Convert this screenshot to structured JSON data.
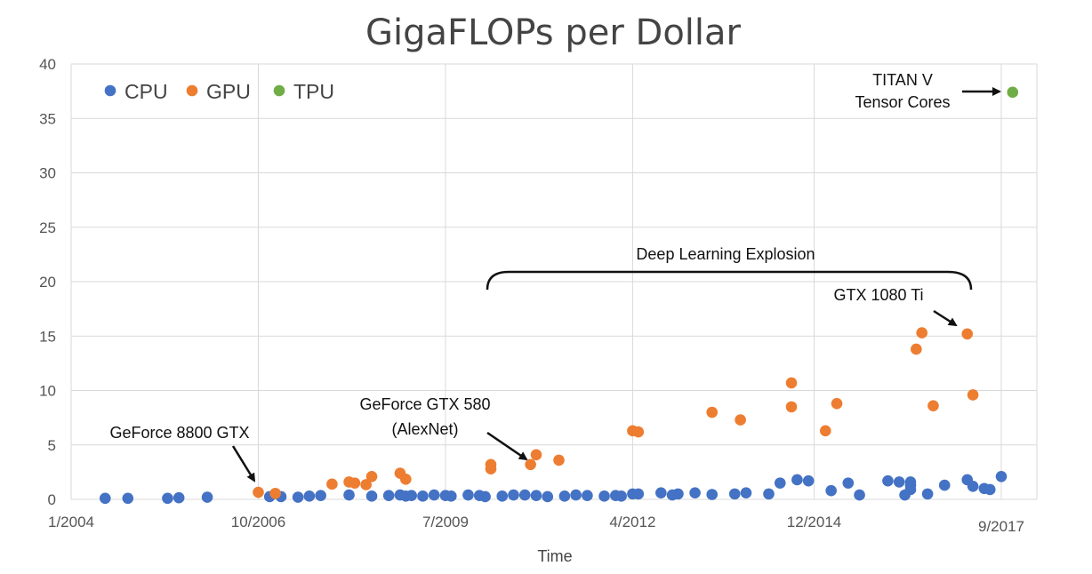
{
  "chart_data": {
    "type": "scatter",
    "title": "GigaFLOPs per Dollar",
    "xlabel": "Time",
    "ylabel": "",
    "ylim": [
      0,
      40
    ],
    "yticks": [
      0,
      5,
      10,
      15,
      20,
      25,
      30,
      35,
      40
    ],
    "xlim": [
      "2004-01",
      "2017-09"
    ],
    "xticks": [
      {
        "date": "2004-01",
        "label": "1/2004"
      },
      {
        "date": "2006-10",
        "label": "10/2006"
      },
      {
        "date": "2009-07",
        "label": "7/2009"
      },
      {
        "date": "2012-04",
        "label": "4/2012"
      },
      {
        "date": "2014-12",
        "label": "12/2014"
      },
      {
        "date": "2017-09",
        "label": "9/2017"
      }
    ],
    "grid": true,
    "legend_position": "top-left",
    "series": [
      {
        "name": "CPU",
        "color": "#4472c4",
        "points": [
          [
            "2004-07",
            0.1
          ],
          [
            "2004-11",
            0.1
          ],
          [
            "2005-06",
            0.1
          ],
          [
            "2005-08",
            0.15
          ],
          [
            "2006-01",
            0.2
          ],
          [
            "2006-12",
            0.25
          ],
          [
            "2007-02",
            0.25
          ],
          [
            "2007-05",
            0.2
          ],
          [
            "2007-07",
            0.3
          ],
          [
            "2007-09",
            0.35
          ],
          [
            "2008-02",
            0.4
          ],
          [
            "2008-06",
            0.3
          ],
          [
            "2008-09",
            0.35
          ],
          [
            "2008-11",
            0.4
          ],
          [
            "2008-12",
            0.3
          ],
          [
            "2009-01",
            0.35
          ],
          [
            "2009-03",
            0.3
          ],
          [
            "2009-05",
            0.4
          ],
          [
            "2009-07",
            0.35
          ],
          [
            "2009-08",
            0.3
          ],
          [
            "2009-11",
            0.4
          ],
          [
            "2010-01",
            0.35
          ],
          [
            "2010-02",
            0.25
          ],
          [
            "2010-05",
            0.3
          ],
          [
            "2010-07",
            0.4
          ],
          [
            "2010-09",
            0.4
          ],
          [
            "2010-11",
            0.35
          ],
          [
            "2011-01",
            0.25
          ],
          [
            "2011-04",
            0.3
          ],
          [
            "2011-06",
            0.4
          ],
          [
            "2011-08",
            0.35
          ],
          [
            "2011-11",
            0.3
          ],
          [
            "2012-01",
            0.35
          ],
          [
            "2012-02",
            0.3
          ],
          [
            "2012-04",
            0.5
          ],
          [
            "2012-05",
            0.5
          ],
          [
            "2012-09",
            0.6
          ],
          [
            "2012-11",
            0.4
          ],
          [
            "2012-12",
            0.5
          ],
          [
            "2013-03",
            0.6
          ],
          [
            "2013-06",
            0.45
          ],
          [
            "2013-10",
            0.5
          ],
          [
            "2013-12",
            0.6
          ],
          [
            "2014-04",
            0.5
          ],
          [
            "2014-06",
            1.5
          ],
          [
            "2014-09",
            1.8
          ],
          [
            "2014-11",
            1.7
          ],
          [
            "2015-03",
            0.8
          ],
          [
            "2015-06",
            1.5
          ],
          [
            "2015-08",
            0.4
          ],
          [
            "2016-01",
            1.7
          ],
          [
            "2016-03",
            1.6
          ],
          [
            "2016-05",
            1.6
          ],
          [
            "2016-05",
            1.3
          ],
          [
            "2016-05",
            0.9
          ],
          [
            "2016-11",
            1.3
          ],
          [
            "2017-03",
            1.8
          ],
          [
            "2017-04",
            1.2
          ],
          [
            "2017-06",
            1.0
          ],
          [
            "2017-07",
            0.9
          ],
          [
            "2017-09",
            2.1
          ],
          [
            "2016-04",
            0.4
          ],
          [
            "2016-08",
            0.5
          ]
        ]
      },
      {
        "name": "GPU",
        "color": "#ed7d31",
        "points": [
          [
            "2006-10",
            0.65
          ],
          [
            "2007-01",
            0.55
          ],
          [
            "2007-11",
            1.4
          ],
          [
            "2008-02",
            1.6
          ],
          [
            "2008-03",
            1.5
          ],
          [
            "2008-05",
            1.35
          ],
          [
            "2008-06",
            2.1
          ],
          [
            "2008-11",
            2.4
          ],
          [
            "2008-12",
            1.85
          ],
          [
            "2010-03",
            3.2
          ],
          [
            "2010-03",
            2.8
          ],
          [
            "2010-10",
            3.2
          ],
          [
            "2010-11",
            4.1
          ],
          [
            "2011-03",
            3.6
          ],
          [
            "2012-04",
            6.3
          ],
          [
            "2012-05",
            6.2
          ],
          [
            "2013-06",
            8.0
          ],
          [
            "2013-11",
            7.3
          ],
          [
            "2014-08",
            10.7
          ],
          [
            "2014-08",
            8.5
          ],
          [
            "2015-02",
            6.3
          ],
          [
            "2015-04",
            8.8
          ],
          [
            "2016-06",
            13.8
          ],
          [
            "2016-07",
            15.3
          ],
          [
            "2016-09",
            8.6
          ],
          [
            "2017-03",
            15.2
          ],
          [
            "2017-04",
            9.6
          ]
        ]
      },
      {
        "name": "TPU",
        "color": "#70ad47",
        "points": [
          [
            "2017-11",
            37.4
          ]
        ]
      }
    ],
    "bracket_label": "Deep Learning Explosion",
    "annotations": [
      {
        "lines": [
          "GeForce 8800 GTX"
        ]
      },
      {
        "lines": [
          "GeForce GTX 580",
          "(AlexNet)"
        ]
      },
      {
        "lines": [
          "GTX 1080 Ti"
        ]
      },
      {
        "lines": [
          "TITAN V",
          "Tensor Cores"
        ]
      }
    ]
  }
}
